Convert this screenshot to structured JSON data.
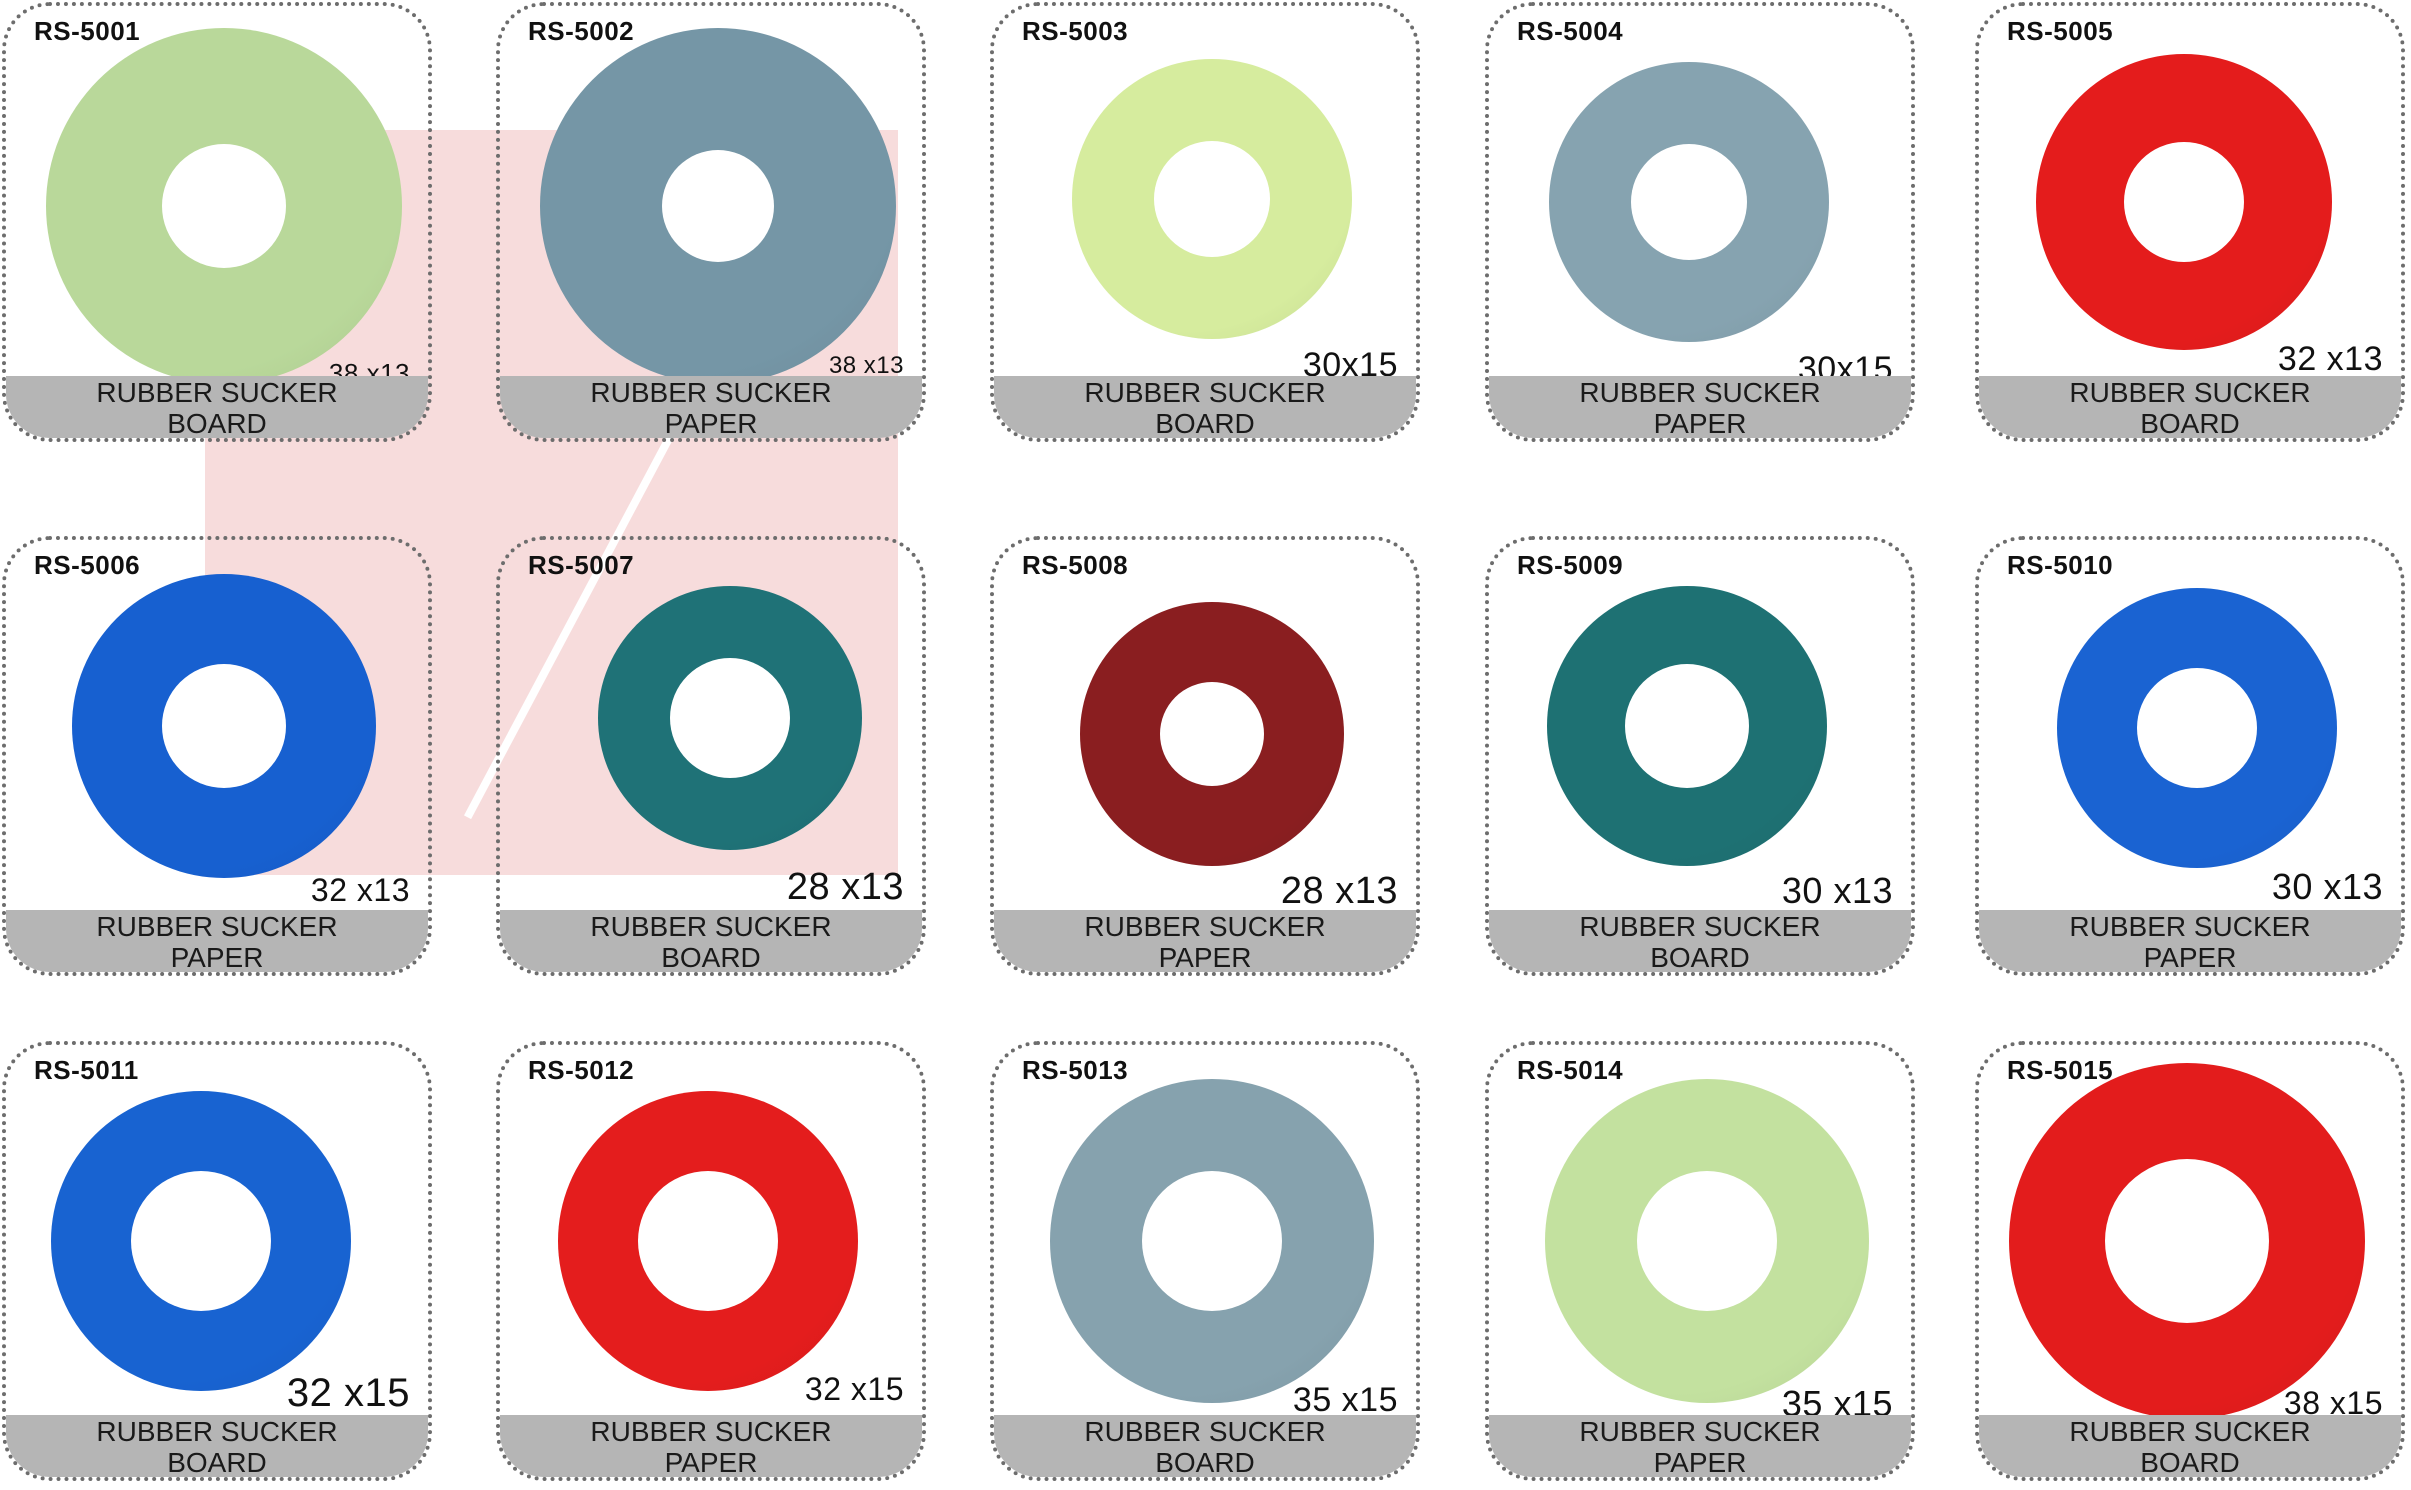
{
  "products": [
    {
      "code": "RS-5001",
      "size": "38 x13",
      "type": "RUBBER SUCKER",
      "material": "BOARD",
      "color": "#b9d89a"
    },
    {
      "code": "RS-5002",
      "size": "38 x13",
      "type": "RUBBER SUCKER",
      "material": "PAPER",
      "color": "#7596a6"
    },
    {
      "code": "RS-5003",
      "size": "30x15",
      "type": "RUBBER SUCKER",
      "material": "BOARD",
      "color": "#d6ec9e"
    },
    {
      "code": "RS-5004",
      "size": "30x15",
      "type": "RUBBER SUCKER",
      "material": "PAPER",
      "color": "#86a3b0"
    },
    {
      "code": "RS-5005",
      "size": "32 x13",
      "type": "RUBBER SUCKER",
      "material": "BOARD",
      "color": "#e41c1c"
    },
    {
      "code": "RS-5006",
      "size": "32 x13",
      "type": "RUBBER SUCKER",
      "material": "PAPER",
      "color": "#1760d0"
    },
    {
      "code": "RS-5007",
      "size": "28 x13",
      "type": "RUBBER SUCKER",
      "material": "BOARD",
      "color": "#1f7277"
    },
    {
      "code": "RS-5008",
      "size": "28 x13",
      "type": "RUBBER SUCKER",
      "material": "PAPER",
      "color": "#8a1e20"
    },
    {
      "code": "RS-5009",
      "size": "30 x13",
      "type": "RUBBER SUCKER",
      "material": "BOARD",
      "color": "#1e7173"
    },
    {
      "code": "RS-5010",
      "size": "30 x13",
      "type": "RUBBER SUCKER",
      "material": "PAPER",
      "color": "#1a63d2"
    },
    {
      "code": "RS-5011",
      "size": "32 x15",
      "type": "RUBBER SUCKER",
      "material": "BOARD",
      "color": "#1863d1"
    },
    {
      "code": "RS-5012",
      "size": "32 x15",
      "type": "RUBBER SUCKER",
      "material": "PAPER",
      "color": "#e41d1d"
    },
    {
      "code": "RS-5013",
      "size": "35 x15",
      "type": "RUBBER SUCKER",
      "material": "BOARD",
      "color": "#86a2ae"
    },
    {
      "code": "RS-5014",
      "size": "35 x15",
      "type": "RUBBER SUCKER",
      "material": "PAPER",
      "color": "#c3e19f"
    },
    {
      "code": "RS-5015",
      "size": "38 x15",
      "type": "RUBBER SUCKER",
      "material": "BOARD",
      "color": "#e31c1c"
    }
  ]
}
